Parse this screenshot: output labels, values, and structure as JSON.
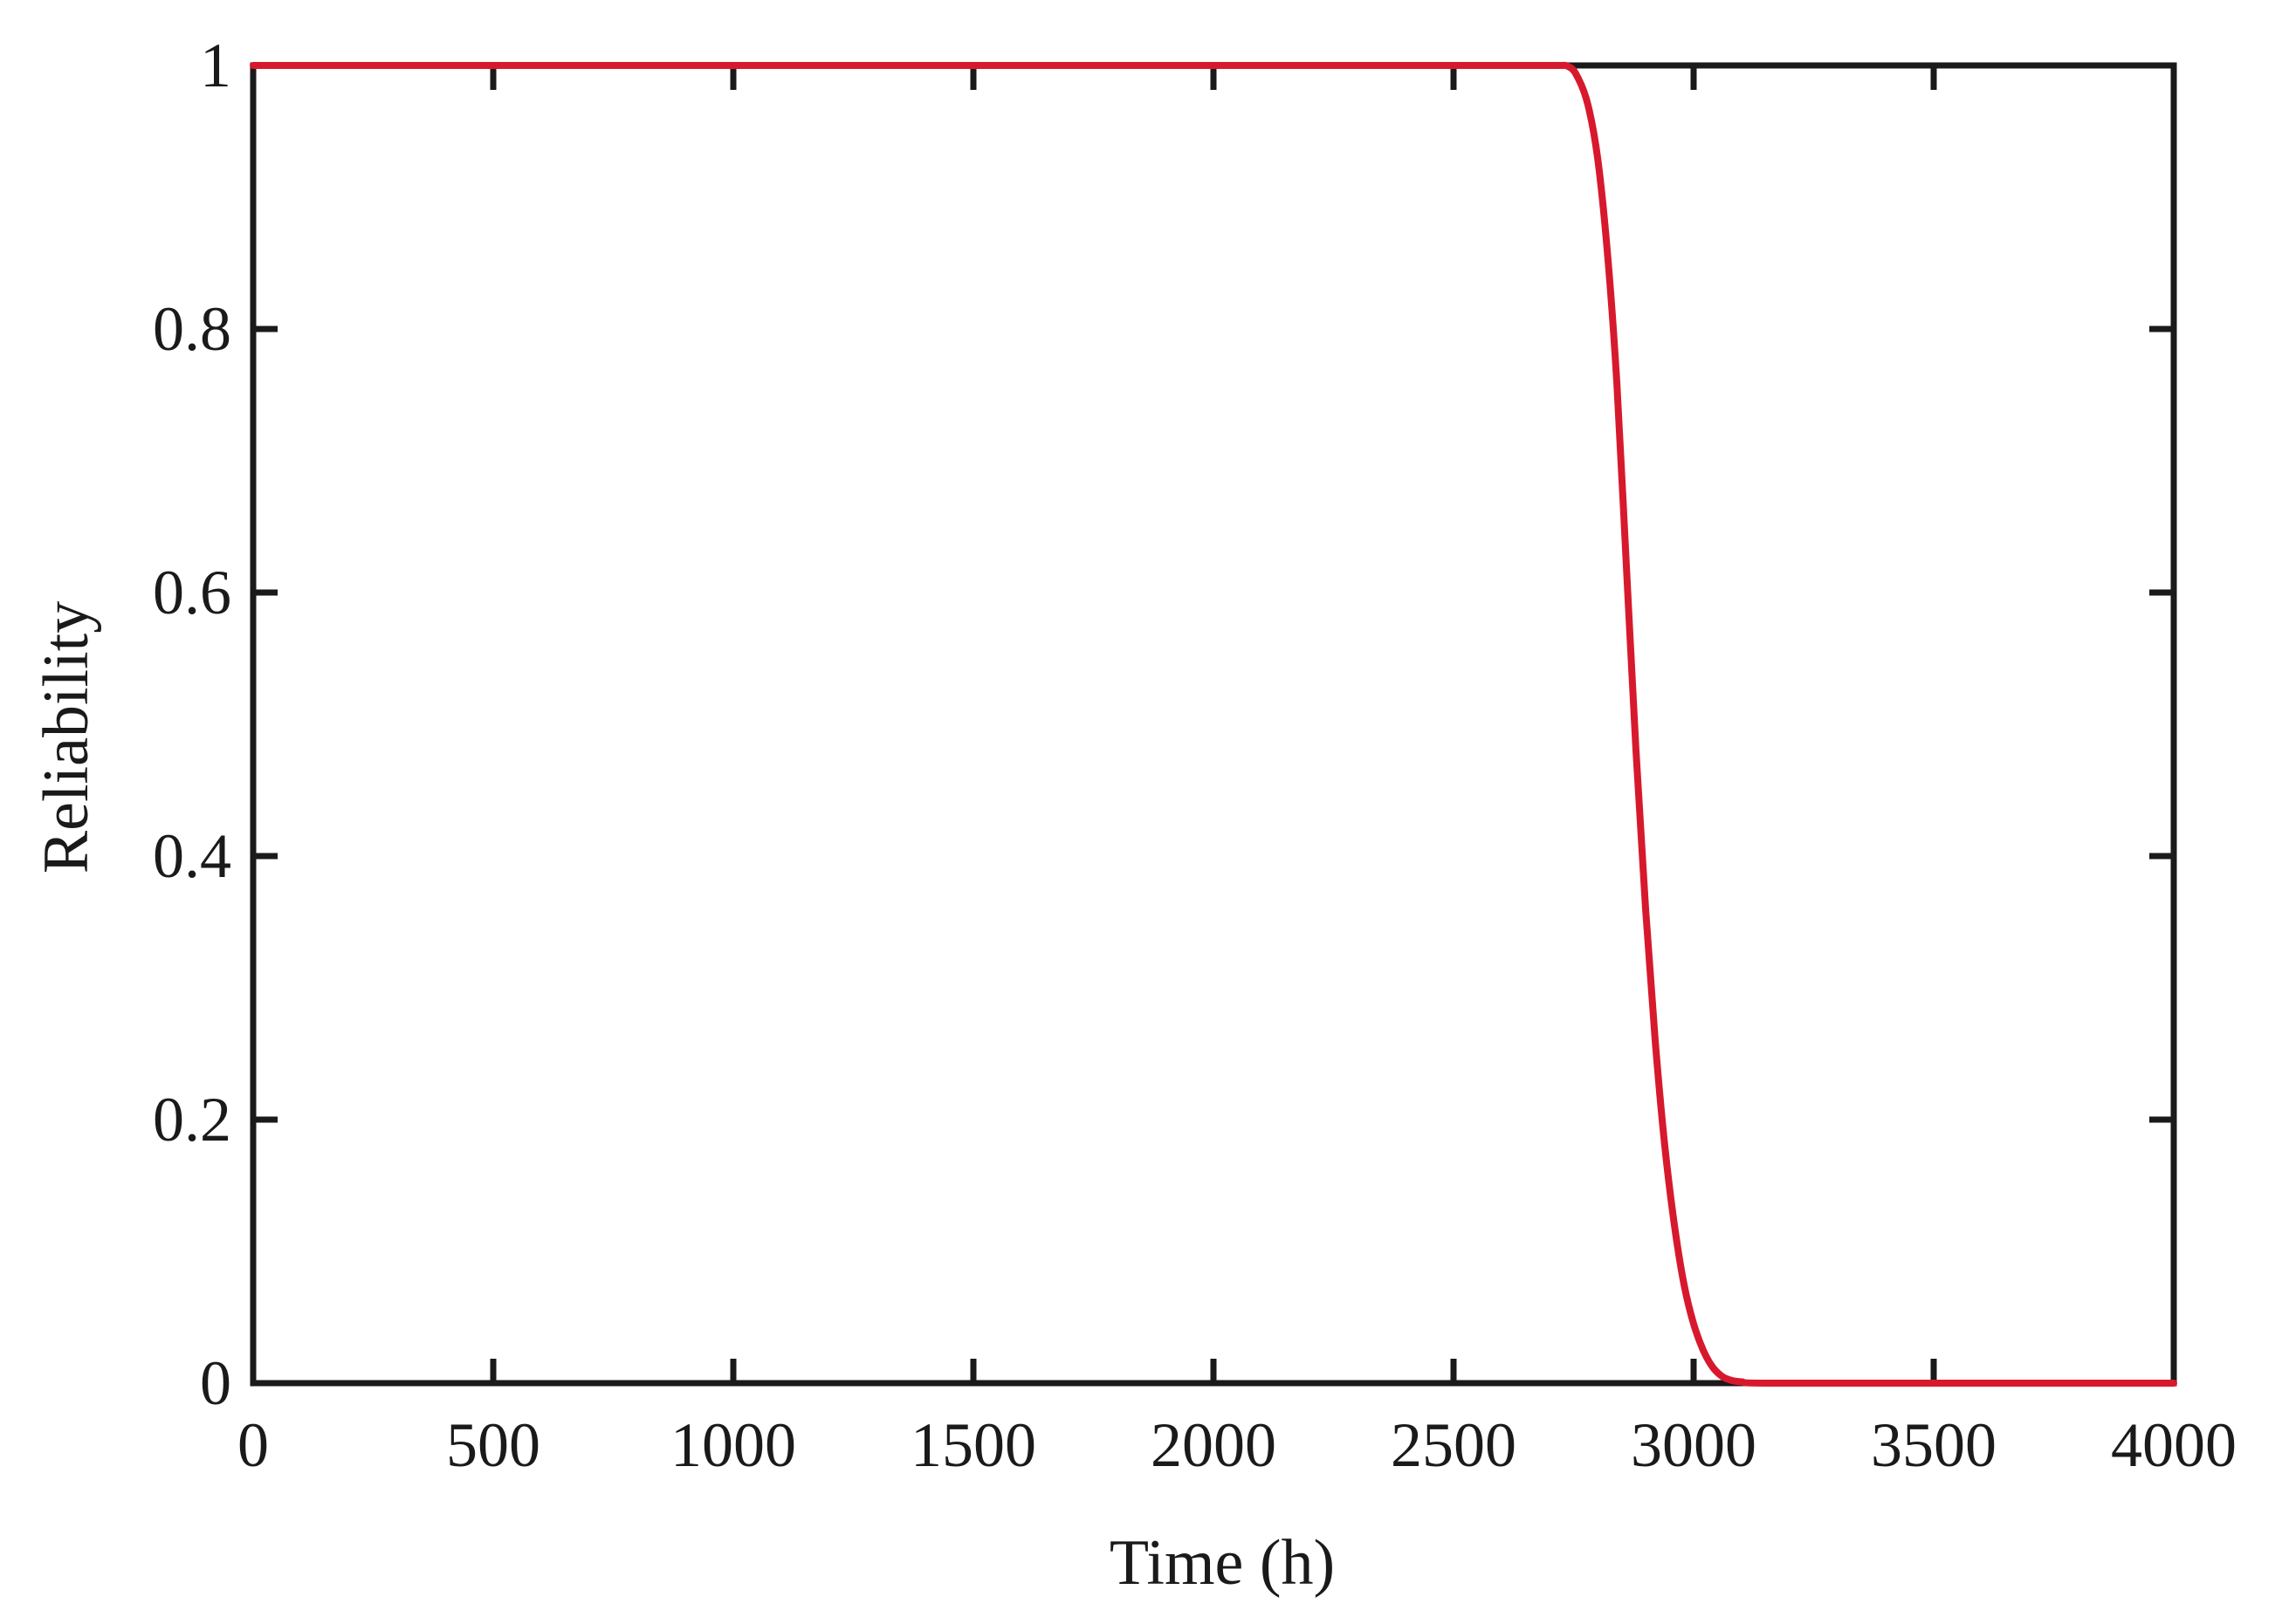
{
  "chart_data": {
    "type": "line",
    "xlabel": "Time (h)",
    "ylabel": "Reliability",
    "xlim": [
      0,
      4000
    ],
    "ylim": [
      0,
      1
    ],
    "xticks": [
      0,
      500,
      1000,
      1500,
      2000,
      2500,
      3000,
      3500,
      4000
    ],
    "xtick_labels": [
      "0",
      "500",
      "1000",
      "1500",
      "2000",
      "2500",
      "3000",
      "3500",
      "4000"
    ],
    "yticks": [
      0,
      0.2,
      0.4,
      0.6,
      0.8,
      1
    ],
    "ytick_labels": [
      "0",
      "0.2",
      "0.4",
      "0.6",
      "0.8",
      "1"
    ],
    "grid": false,
    "series": [
      {
        "color": "#d7192d",
        "x": [
          0,
          500,
          1000,
          1500,
          2000,
          2500,
          2700,
          2740,
          2760,
          2780,
          2800,
          2820,
          2840,
          2860,
          2880,
          2900,
          2920,
          2940,
          2960,
          2980,
          3000,
          3020,
          3040,
          3060,
          3080,
          3100,
          3150,
          3500,
          4000
        ],
        "y": [
          1,
          1,
          1,
          1,
          1,
          1,
          1,
          0.999,
          0.99,
          0.97,
          0.93,
          0.86,
          0.76,
          0.62,
          0.48,
          0.36,
          0.26,
          0.18,
          0.12,
          0.075,
          0.045,
          0.025,
          0.012,
          0.005,
          0.002,
          0.001,
          0,
          0,
          0
        ]
      }
    ],
    "axis_color": "#1a1a1a",
    "background": "#ffffff"
  }
}
